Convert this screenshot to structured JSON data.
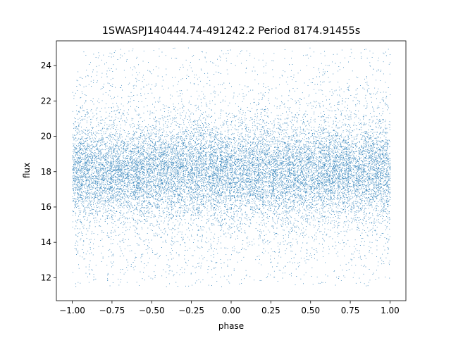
{
  "chart_data": {
    "type": "scatter",
    "title": "1SWASPJ140444.74-491242.2 Period 8174.91455s",
    "xlabel": "phase",
    "ylabel": "flux",
    "xlim": [
      -1.1,
      1.1
    ],
    "ylim": [
      10.7,
      25.4
    ],
    "x_ticks": [
      -1.0,
      -0.75,
      -0.5,
      -0.25,
      0.0,
      0.25,
      0.5,
      0.75,
      1.0
    ],
    "x_tick_labels": [
      "−1.00",
      "−0.75",
      "−0.50",
      "−0.25",
      "0.00",
      "0.25",
      "0.50",
      "0.75",
      "1.00"
    ],
    "y_ticks": [
      12,
      14,
      16,
      18,
      20,
      22,
      24
    ],
    "y_tick_labels": [
      "12",
      "14",
      "16",
      "18",
      "20",
      "22",
      "24"
    ],
    "grid": false,
    "marker_color": "#1f77b4",
    "point_distribution": {
      "phase_range": [
        -1.0,
        1.0
      ],
      "flux_range": [
        11.5,
        25.0
      ],
      "core_band": [
        16,
        20
      ],
      "median_flux": 18.0
    }
  }
}
